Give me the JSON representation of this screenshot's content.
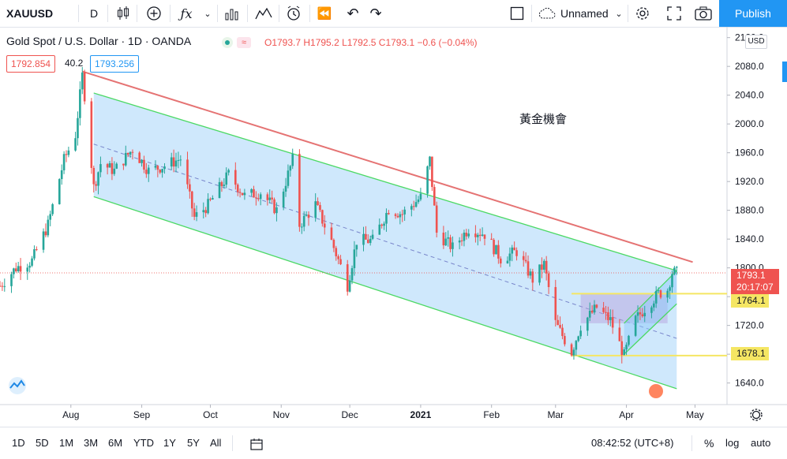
{
  "toolbar": {
    "symbol": "XAUUSD",
    "interval": "D",
    "layout_name": "Unnamed",
    "publish_label": "Publish",
    "icons": [
      "candles-icon",
      "plus-circle-icon",
      "fx-icon",
      "chevron-down-icon",
      "bar-chart-icon",
      "compare-icon",
      "alert-clock-icon",
      "replay-icon",
      "undo-icon",
      "redo-icon",
      "square-icon",
      "cloud-icon",
      "gear-icon",
      "fullscreen-icon",
      "camera-icon"
    ]
  },
  "legend": {
    "title": "Gold Spot / U.S. Dollar · 1D · OANDA",
    "ohlc": "O1793.7 H1795.2 L1792.5 C1793.1 −0.6 (−0.04%)",
    "sell_price": "1792.854",
    "spread": "40.2",
    "buy_price": "1793.256"
  },
  "price_scale": {
    "currency": "USD",
    "ticks": [
      "2120.0",
      "2080.0",
      "2040.0",
      "2000.0",
      "1960.0",
      "1920.0",
      "1880.0",
      "1840.0",
      "1800.0",
      "1760.0",
      "1720.0",
      "1680.0",
      "1640.0"
    ],
    "current_price": "1793.1",
    "countdown": "20:17:07",
    "level_upper": "1764.1",
    "level_lower": "1678.1"
  },
  "time_axis": [
    "Aug",
    "Sep",
    "Oct",
    "Nov",
    "Dec",
    "2021",
    "Feb",
    "Mar",
    "Apr",
    "May"
  ],
  "annotation": "黃金機會",
  "bottom": {
    "ranges": [
      "1D",
      "5D",
      "1M",
      "3M",
      "6M",
      "YTD",
      "1Y",
      "5Y",
      "All"
    ],
    "time": "08:42:52 (UTC+8)",
    "percent": "%",
    "log": "log",
    "auto": "auto"
  },
  "colors": {
    "up": "#26a69a",
    "down": "#ef5350",
    "channel_line": "#4cd964",
    "channel_fill": "#bbdefb",
    "resistance_line": "#e57373",
    "level_line": "#f5e663",
    "accent": "#2196f3"
  },
  "chart_data": {
    "type": "candlestick",
    "ylim": [
      1610,
      2135
    ],
    "y_scale": "linear",
    "grid": false,
    "x_start": "2020-07-01",
    "x_end": "2021-05-15",
    "price_series": [
      [
        "2020-07-01",
        1775
      ],
      [
        "2020-07-08",
        1800
      ],
      [
        "2020-07-15",
        1810
      ],
      [
        "2020-07-22",
        1860
      ],
      [
        "2020-07-29",
        1950
      ],
      [
        "2020-08-03",
        1985
      ],
      [
        "2020-08-06",
        2067
      ],
      [
        "2020-08-07",
        2040
      ],
      [
        "2020-08-11",
        1912
      ],
      [
        "2020-08-14",
        1945
      ],
      [
        "2020-08-20",
        1935
      ],
      [
        "2020-08-28",
        1965
      ],
      [
        "2020-09-04",
        1935
      ],
      [
        "2020-09-11",
        1942
      ],
      [
        "2020-09-18",
        1952
      ],
      [
        "2020-09-24",
        1870
      ],
      [
        "2020-09-30",
        1887
      ],
      [
        "2020-10-09",
        1930
      ],
      [
        "2020-10-16",
        1900
      ],
      [
        "2020-10-23",
        1905
      ],
      [
        "2020-10-30",
        1880
      ],
      [
        "2020-11-06",
        1950
      ],
      [
        "2020-11-09",
        1860
      ],
      [
        "2020-11-16",
        1888
      ],
      [
        "2020-11-23",
        1837
      ],
      [
        "2020-11-30",
        1776
      ],
      [
        "2020-12-04",
        1838
      ],
      [
        "2020-12-11",
        1838
      ],
      [
        "2020-12-18",
        1882
      ],
      [
        "2020-12-24",
        1875
      ],
      [
        "2021-01-01",
        1898
      ],
      [
        "2021-01-05",
        1950
      ],
      [
        "2021-01-08",
        1849
      ],
      [
        "2021-01-15",
        1828
      ],
      [
        "2021-01-22",
        1855
      ],
      [
        "2021-01-29",
        1847
      ],
      [
        "2021-02-05",
        1813
      ],
      [
        "2021-02-12",
        1823
      ],
      [
        "2021-02-19",
        1784
      ],
      [
        "2021-02-24",
        1805
      ],
      [
        "2021-03-01",
        1723
      ],
      [
        "2021-03-08",
        1683
      ],
      [
        "2021-03-12",
        1720
      ],
      [
        "2021-03-19",
        1745
      ],
      [
        "2021-03-25",
        1727
      ],
      [
        "2021-03-31",
        1678
      ],
      [
        "2021-04-05",
        1728
      ],
      [
        "2021-04-09",
        1744
      ],
      [
        "2021-04-15",
        1764
      ],
      [
        "2021-04-19",
        1770
      ],
      [
        "2021-04-21",
        1794
      ],
      [
        "2021-04-23",
        1793
      ]
    ],
    "resistance_line": {
      "from": [
        "2020-08-06",
        2073
      ],
      "to": [
        "2021-04-30",
        1808
      ]
    },
    "channel": {
      "upper": {
        "from": [
          "2020-08-11",
          2043
        ],
        "to": [
          "2021-04-23",
          1796
        ]
      },
      "lower": {
        "from": [
          "2020-08-11",
          1899
        ],
        "to": [
          "2021-04-23",
          1632
        ]
      },
      "mid": {
        "from": [
          "2020-08-11",
          1972
        ],
        "to": [
          "2021-04-23",
          1702
        ]
      }
    },
    "horizontal_levels": [
      1764.1,
      1678.1
    ],
    "rising_channel": {
      "upper": {
        "from": [
          "2021-03-31",
          1723
        ],
        "to": [
          "2021-04-23",
          1796
        ]
      },
      "lower": {
        "from": [
          "2021-03-31",
          1680
        ],
        "to": [
          "2021-04-23",
          1750
        ]
      }
    },
    "rectangle": {
      "from": [
        "2021-03-12",
        1764
      ],
      "to": [
        "2021-04-19",
        1723
      ]
    }
  }
}
